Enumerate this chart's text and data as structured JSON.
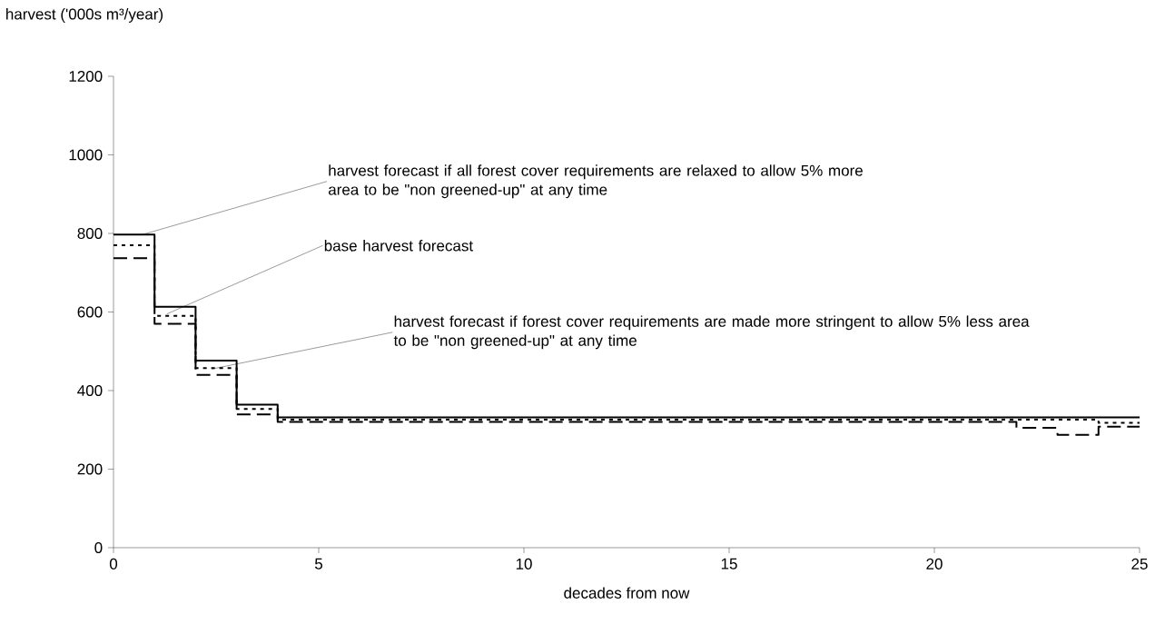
{
  "chart_data": {
    "type": "step",
    "xlabel": "decades from now",
    "ylabel": "harvest ('000s m³/year)",
    "x": [
      0,
      1,
      2,
      3,
      4,
      5,
      6,
      7,
      8,
      9,
      10,
      11,
      12,
      13,
      14,
      15,
      16,
      17,
      18,
      19,
      20,
      21,
      22,
      23,
      24,
      25
    ],
    "series": [
      {
        "color": "#000000",
        "line_style": "solid",
        "values": [
          797,
          613,
          476,
          364,
          332,
          332,
          332,
          332,
          332,
          332,
          332,
          332,
          332,
          332,
          332,
          332,
          332,
          332,
          332,
          332,
          332,
          332,
          332,
          332,
          332,
          332
        ]
      },
      {
        "color": "#000000",
        "line_style": "dotted",
        "values": [
          770,
          590,
          457,
          353,
          326,
          326,
          326,
          326,
          326,
          326,
          326,
          326,
          326,
          326,
          326,
          326,
          326,
          326,
          326,
          326,
          326,
          326,
          326,
          326,
          318,
          318
        ]
      },
      {
        "color": "#000000",
        "line_style": "dashed",
        "values": [
          737,
          570,
          440,
          339,
          320,
          320,
          320,
          320,
          320,
          320,
          320,
          320,
          320,
          320,
          320,
          320,
          320,
          320,
          320,
          320,
          320,
          320,
          305,
          287,
          308,
          308
        ]
      }
    ],
    "xlim": [
      0,
      25
    ],
    "xticks": [
      0,
      5,
      10,
      15,
      20,
      25
    ],
    "ylim": [
      0,
      1200
    ],
    "yticks": [
      0,
      200,
      400,
      600,
      800,
      1000,
      1200
    ],
    "grid": false,
    "legend": false,
    "marker": "none",
    "annotations": [
      {
        "text": "harvest forecast if all forest cover requirements are relaxed to allow 5% more area to be \"non greened-up\" at any time",
        "x": 0.7,
        "y": 797
      },
      {
        "text": "base harvest forecast",
        "x": 1.3,
        "y": 595
      },
      {
        "text": "harvest forecast if forest cover requirements are made more stringent to allow 5% less area to be \"non greened-up\" at any time",
        "x": 2.4,
        "y": 455
      }
    ]
  }
}
